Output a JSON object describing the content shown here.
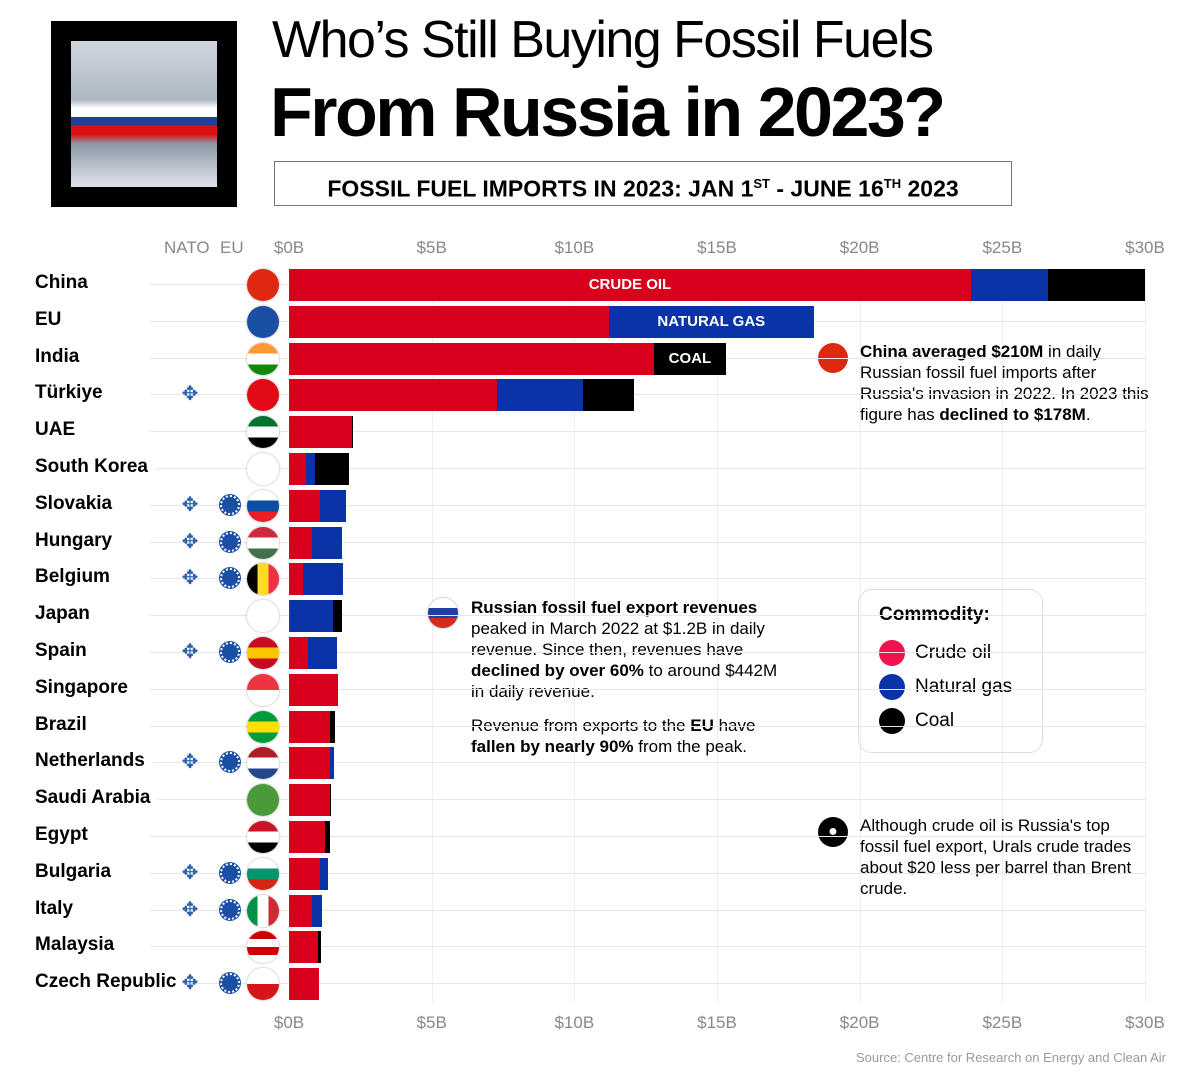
{
  "header": {
    "title_line1": "Who’s Still Buying Fossil Fuels",
    "title_line2": "From Russia in 2023?",
    "subtitle_a": "FOSSIL FUEL IMPORTS IN 2023: JAN 1",
    "subtitle_sup1": "ST",
    "subtitle_b": " - JUNE 16",
    "subtitle_sup2": "TH",
    "subtitle_c": " 2023"
  },
  "columns": {
    "nato": "NATO",
    "eu": "EU"
  },
  "colors": {
    "crude": "#d9001b",
    "gas": "#0a33a8",
    "coal": "#000000",
    "legend_crude": "#f0134f"
  },
  "chart_data": {
    "type": "bar",
    "orientation": "horizontal",
    "stacked": true,
    "title": "Fossil fuel imports in 2023: Jan 1st - June 16th 2023",
    "xlim": [
      0,
      30
    ],
    "xticks": [
      "$0B",
      "$5B",
      "$10B",
      "$15B",
      "$20B",
      "$25B",
      "$30B"
    ],
    "series_names": [
      "Crude oil",
      "Natural gas",
      "Coal"
    ],
    "segment_labels": {
      "crude": "CRUDE OIL",
      "gas": "NATURAL GAS",
      "coal": "COAL"
    },
    "rows": [
      {
        "name": "China",
        "nato": false,
        "eu": false,
        "flag": [
          "#de2910",
          "#de2910"
        ],
        "crude": 23.9,
        "gas": 2.7,
        "coal": 3.4
      },
      {
        "name": "EU",
        "nato": false,
        "eu": false,
        "flag": [
          "#1a4fa3",
          "#1a4fa3"
        ],
        "crude": 11.2,
        "gas": 7.2,
        "coal": 0
      },
      {
        "name": "India",
        "nato": false,
        "eu": false,
        "flag": [
          "#ff9933",
          "#ffffff",
          "#138808"
        ],
        "crude": 12.8,
        "gas": 0,
        "coal": 2.5
      },
      {
        "name": "Türkiye",
        "nato": true,
        "eu": false,
        "flag": [
          "#e30a17",
          "#e30a17"
        ],
        "crude": 7.3,
        "gas": 3.0,
        "coal": 1.8
      },
      {
        "name": "UAE",
        "nato": false,
        "eu": false,
        "flag": [
          "#00732f",
          "#ffffff",
          "#000000"
        ],
        "crude": 2.2,
        "gas": 0,
        "coal": 0.05
      },
      {
        "name": "South Korea",
        "nato": false,
        "eu": false,
        "flag": [
          "#ffffff",
          "#ffffff"
        ],
        "crude": 0.6,
        "gas": 0.3,
        "coal": 1.2
      },
      {
        "name": "Slovakia",
        "nato": true,
        "eu": true,
        "flag": [
          "#ffffff",
          "#0b4ea2",
          "#ee1c25"
        ],
        "crude": 1.1,
        "gas": 0.9,
        "coal": 0
      },
      {
        "name": "Hungary",
        "nato": true,
        "eu": true,
        "flag": [
          "#cd2a3e",
          "#ffffff",
          "#436f4d"
        ],
        "crude": 0.8,
        "gas": 1.05,
        "coal": 0
      },
      {
        "name": "Belgium",
        "nato": true,
        "eu": true,
        "flag": [
          "#000000",
          "#fdda24",
          "#ef3340"
        ],
        "crude": 0.5,
        "gas": 1.4,
        "coal": 0,
        "vertical": true
      },
      {
        "name": "Japan",
        "nato": false,
        "eu": false,
        "flag": [
          "#ffffff",
          "#ffffff"
        ],
        "crude": 0.05,
        "gas": 1.5,
        "coal": 0.3
      },
      {
        "name": "Spain",
        "nato": true,
        "eu": true,
        "flag": [
          "#c60b1e",
          "#ffc400",
          "#c60b1e"
        ],
        "crude": 0.65,
        "gas": 1.05,
        "coal": 0
      },
      {
        "name": "Singapore",
        "nato": false,
        "eu": false,
        "flag": [
          "#ef3340",
          "#ffffff"
        ],
        "crude": 1.7,
        "gas": 0,
        "coal": 0
      },
      {
        "name": "Brazil",
        "nato": false,
        "eu": false,
        "flag": [
          "#009c3b",
          "#ffdf00",
          "#009c3b"
        ],
        "crude": 1.45,
        "gas": 0,
        "coal": 0.17
      },
      {
        "name": "Netherlands",
        "nato": true,
        "eu": true,
        "flag": [
          "#ae1c28",
          "#ffffff",
          "#21468b"
        ],
        "crude": 1.45,
        "gas": 0.12,
        "coal": 0
      },
      {
        "name": "Saudi Arabia",
        "nato": false,
        "eu": false,
        "flag": [
          "#4a9a3a",
          "#4a9a3a"
        ],
        "crude": 1.45,
        "gas": 0,
        "coal": 0.02
      },
      {
        "name": "Egypt",
        "nato": false,
        "eu": false,
        "flag": [
          "#ce1126",
          "#ffffff",
          "#000000"
        ],
        "crude": 1.25,
        "gas": 0,
        "coal": 0.2
      },
      {
        "name": "Bulgaria",
        "nato": true,
        "eu": true,
        "flag": [
          "#ffffff",
          "#00966e",
          "#d62612"
        ],
        "crude": 1.1,
        "gas": 0.25,
        "coal": 0
      },
      {
        "name": "Italy",
        "nato": true,
        "eu": true,
        "flag": [
          "#009246",
          "#ffffff",
          "#ce2b37"
        ],
        "crude": 0.8,
        "gas": 0.35,
        "coal": 0,
        "vertical": true
      },
      {
        "name": "Malaysia",
        "nato": false,
        "eu": false,
        "flag": [
          "#cc0001",
          "#ffffff",
          "#cc0001",
          "#ffffff"
        ],
        "crude": 1.0,
        "gas": 0,
        "coal": 0.12
      },
      {
        "name": "Czech Republic",
        "nato": true,
        "eu": true,
        "flag": [
          "#ffffff",
          "#d7141a"
        ],
        "crude": 1.05,
        "gas": 0,
        "coal": 0
      }
    ]
  },
  "notes": {
    "china": [
      {
        "t": "China averaged $210M",
        "b": true
      },
      {
        "t": " in daily Russian fossil fuel imports after Russia's invasion in 2022. In 2023 this figure has ",
        "b": false
      },
      {
        "t": "declined to $178M",
        "b": true
      },
      {
        "t": ".",
        "b": false
      }
    ],
    "russia1": [
      {
        "t": "Russian fossil fuel export revenues",
        "b": true
      },
      {
        "t": " peaked in March 2022 at $1.2B in daily revenue. Since then, revenues have ",
        "b": false
      },
      {
        "t": "declined by over 60%",
        "b": true
      },
      {
        "t": " to around $442M in daily revenue.",
        "b": false
      }
    ],
    "russia2": [
      {
        "t": "Revenue from exports to the ",
        "b": false
      },
      {
        "t": "EU",
        "b": true
      },
      {
        "t": " have ",
        "b": false
      },
      {
        "t": "fallen by nearly 90%",
        "b": true
      },
      {
        "t": " from the peak.",
        "b": false
      }
    ],
    "oil": [
      {
        "t": "Although crude oil is Russia's top fossil fuel export, Urals crude trades about $20 less per barrel than Brent crude.",
        "b": false
      }
    ]
  },
  "legend": {
    "title": "Commodity:",
    "items": [
      "Crude oil",
      "Natural gas",
      "Coal"
    ]
  },
  "source": "Source: Centre for Research on Energy and Clean Air"
}
